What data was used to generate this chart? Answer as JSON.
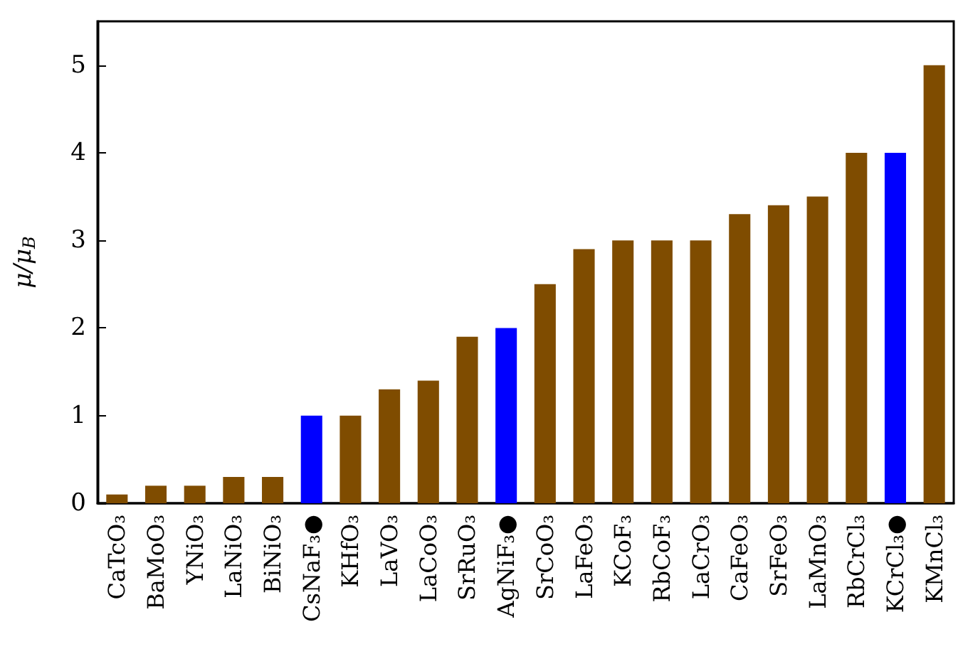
{
  "chart_data": {
    "type": "bar",
    "ylabel": "μ/μ$_{B}$",
    "categories": [
      "CaTcO₃",
      "BaMoO₃",
      "YNiO₃",
      "LaNiO₃",
      "BiNiO₃",
      "CsNaF₃●",
      "KHfO₃",
      "LaVO₃",
      "LaCoO₃",
      "SrRuO₃",
      "AgNiF₃●",
      "SrCoO₃",
      "LaFeO₃",
      "KCoF₃",
      "RbCoF₃",
      "LaCrO₃",
      "CaFeO₃",
      "SrFeO₃",
      "LaMnO₃",
      "RbCrCl₃",
      "KCrCl₃●",
      "KMnCl₃"
    ],
    "values": [
      0.1,
      0.2,
      0.2,
      0.3,
      0.3,
      1,
      1,
      1.3,
      1.4,
      1.9,
      2,
      2.5,
      2.9,
      3,
      3,
      3,
      3.3,
      3.4,
      3.5,
      4,
      4,
      5
    ],
    "colors": [
      "#7f4c00",
      "#7f4c00",
      "#7f4c00",
      "#7f4c00",
      "#7f4c00",
      "#0000ff",
      "#7f4c00",
      "#7f4c00",
      "#7f4c00",
      "#7f4c00",
      "#0000ff",
      "#7f4c00",
      "#7f4c00",
      "#7f4c00",
      "#7f4c00",
      "#7f4c00",
      "#7f4c00",
      "#7f4c00",
      "#7f4c00",
      "#7f4c00",
      "#0000ff",
      "#7f4c00"
    ],
    "ylim": [
      0,
      5.5
    ],
    "yticks": [
      0,
      1,
      2,
      3,
      4,
      5
    ],
    "grid": false
  }
}
